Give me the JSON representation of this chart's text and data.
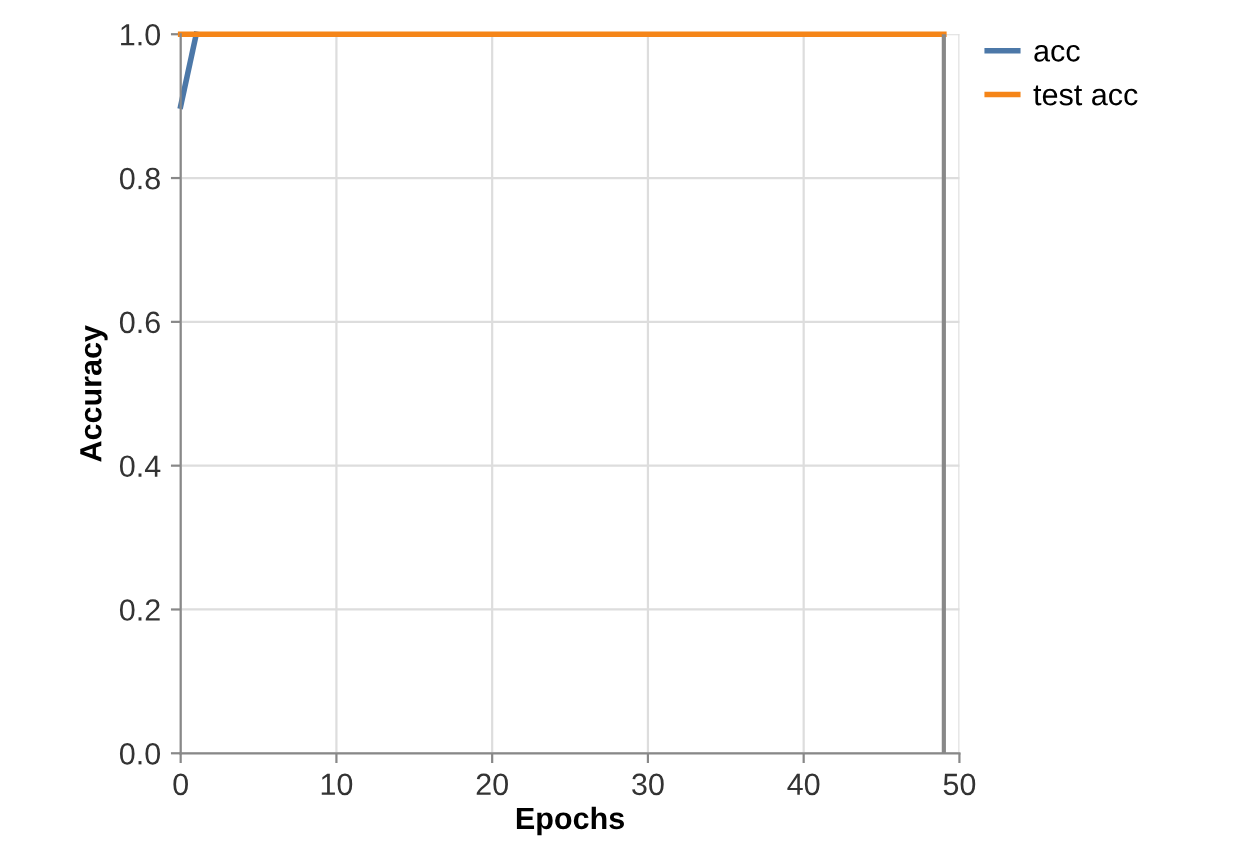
{
  "chart_data": {
    "type": "line",
    "xlabel": "Epochs",
    "ylabel": "Accuracy",
    "x": [
      0,
      1,
      2,
      3,
      4,
      5,
      6,
      7,
      8,
      9,
      10,
      11,
      12,
      13,
      14,
      15,
      16,
      17,
      18,
      19,
      20,
      21,
      22,
      23,
      24,
      25,
      26,
      27,
      28,
      29,
      30,
      31,
      32,
      33,
      34,
      35,
      36,
      37,
      38,
      39,
      40,
      41,
      42,
      43,
      44,
      45,
      46,
      47,
      48,
      49
    ],
    "series": [
      {
        "name": "acc",
        "color": "#4c78a8",
        "values": [
          0.9,
          1,
          null,
          null,
          null,
          null,
          null,
          null,
          null,
          null,
          null,
          null,
          null,
          null,
          null,
          null,
          null,
          null,
          null,
          null,
          null,
          null,
          null,
          null,
          null,
          null,
          null,
          null,
          null,
          null,
          null,
          null,
          null,
          null,
          null,
          null,
          null,
          null,
          null,
          null,
          null,
          null,
          null,
          null,
          null,
          null,
          null,
          null,
          null,
          null
        ]
      },
      {
        "name": "test acc",
        "color": "#f58518",
        "values": [
          1,
          1,
          1,
          1,
          1,
          1,
          1,
          1,
          1,
          1,
          1,
          1,
          1,
          1,
          1,
          1,
          1,
          1,
          1,
          1,
          1,
          1,
          1,
          1,
          1,
          1,
          1,
          1,
          1,
          1,
          1,
          1,
          1,
          1,
          1,
          1,
          1,
          1,
          1,
          1,
          1,
          1,
          1,
          1,
          1,
          1,
          1,
          1,
          1,
          1
        ]
      }
    ],
    "ref_lines": [
      {
        "axis": "x",
        "value": 49,
        "color": "#888888"
      }
    ],
    "xlim": [
      0,
      50
    ],
    "xticks": [
      0,
      10,
      20,
      30,
      40,
      50
    ],
    "ylim": [
      0,
      1
    ],
    "yticks": [
      {
        "value": 0,
        "label": "0.0"
      },
      0.2,
      0.4,
      0.6,
      0.8,
      {
        "value": 1,
        "label": "1.0"
      }
    ],
    "grid": true,
    "legend": "top right"
  }
}
